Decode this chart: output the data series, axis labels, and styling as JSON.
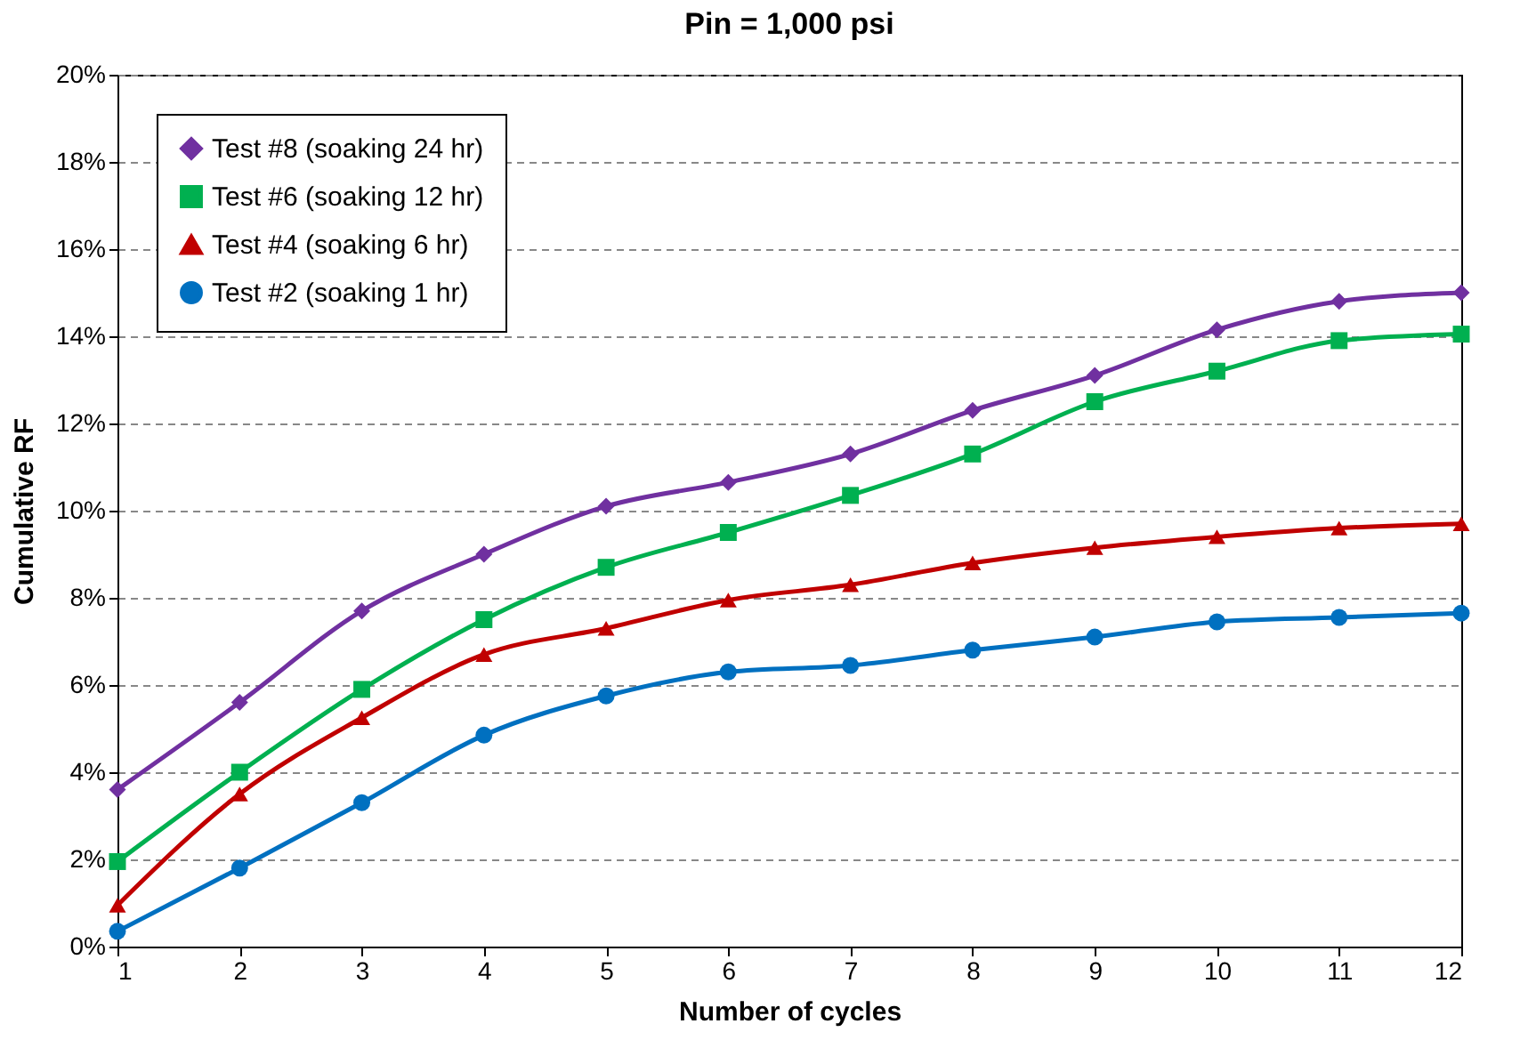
{
  "chart_data": {
    "type": "line",
    "title": "Pin = 1,000 psi",
    "xlabel": "Number of cycles",
    "ylabel": "Cumulative RF",
    "x": [
      1,
      2,
      3,
      4,
      5,
      6,
      7,
      8,
      9,
      10,
      11,
      12
    ],
    "series": [
      {
        "name": "Test #8 (soaking 24 hr)",
        "color": "#7030a0",
        "marker": "diamond",
        "values": [
          3.6,
          5.6,
          7.7,
          9.0,
          10.1,
          10.65,
          11.3,
          12.3,
          13.1,
          14.15,
          14.8,
          15.0
        ]
      },
      {
        "name": "Test #6 (soaking 12 hr)",
        "color": "#00b050",
        "marker": "square",
        "values": [
          1.95,
          4.0,
          5.9,
          7.5,
          8.7,
          9.5,
          10.35,
          11.3,
          12.5,
          13.2,
          13.9,
          14.05
        ]
      },
      {
        "name": "Test #4 (soaking 6 hr)",
        "color": "#c00000",
        "marker": "triangle",
        "values": [
          0.95,
          3.5,
          5.25,
          6.7,
          7.3,
          7.95,
          8.3,
          8.8,
          9.15,
          9.4,
          9.6,
          9.7
        ]
      },
      {
        "name": "Test #2 (soaking 1 hr)",
        "color": "#0070c0",
        "marker": "circle",
        "values": [
          0.35,
          1.8,
          3.3,
          4.85,
          5.75,
          6.3,
          6.45,
          6.8,
          7.1,
          7.45,
          7.55,
          7.65
        ]
      }
    ],
    "xlim": [
      1,
      12
    ],
    "xticks": [
      1,
      2,
      3,
      4,
      5,
      6,
      7,
      8,
      9,
      10,
      11,
      12
    ],
    "ylim": [
      0,
      20
    ],
    "yticks": [
      {
        "value": 0,
        "label": "0%"
      },
      {
        "value": 2,
        "label": "2%"
      },
      {
        "value": 4,
        "label": "4%"
      },
      {
        "value": 6,
        "label": "6%"
      },
      {
        "value": 8,
        "label": "8%"
      },
      {
        "value": 10,
        "label": "10%"
      },
      {
        "value": 12,
        "label": "12%"
      },
      {
        "value": 14,
        "label": "14%"
      },
      {
        "value": 16,
        "label": "16%"
      },
      {
        "value": 18,
        "label": "18%"
      },
      {
        "value": 20,
        "label": "20%"
      }
    ],
    "grid": "y",
    "legend": "top left",
    "line_style": "solid"
  }
}
